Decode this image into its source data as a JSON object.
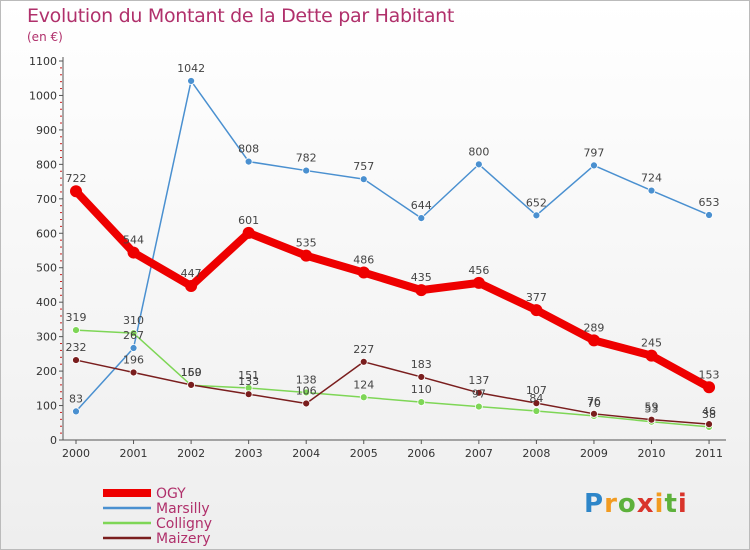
{
  "title": "Evolution du Montant de la Dette par Habitant",
  "unit_label": "(en €)",
  "logo_text": "Proxiti",
  "chart_data": {
    "type": "line",
    "title": "Evolution du Montant de la Dette par Habitant",
    "ylabel": "(en €)",
    "x": [
      "2000",
      "2001",
      "2002",
      "2003",
      "2004",
      "2005",
      "2006",
      "2007",
      "2008",
      "2009",
      "2010",
      "2011"
    ],
    "ylim": [
      0,
      1100
    ],
    "yticks": [
      0,
      100,
      200,
      300,
      400,
      500,
      600,
      700,
      800,
      900,
      1000,
      1100
    ],
    "grid": false,
    "legend_position": "bottom-left",
    "series": [
      {
        "name": "OGY",
        "color": "#ee0000",
        "values": [
          722,
          544,
          447,
          601,
          535,
          486,
          435,
          456,
          377,
          289,
          245,
          153
        ]
      },
      {
        "name": "Marsilly",
        "color": "#4a90d0",
        "values": [
          83,
          267,
          1042,
          808,
          782,
          757,
          644,
          800,
          652,
          797,
          724,
          653
        ]
      },
      {
        "name": "Colligny",
        "color": "#7ed656",
        "values": [
          319,
          310,
          159,
          151,
          138,
          124,
          110,
          97,
          84,
          70,
          53,
          38
        ]
      },
      {
        "name": "Maizery",
        "color": "#7a1e1e",
        "values": [
          232,
          196,
          160,
          133,
          106,
          227,
          183,
          137,
          107,
          76,
          59,
          46
        ]
      }
    ],
    "data_labels": [
      {
        "series": "OGY",
        "values": [
          "722",
          "544",
          "447",
          "601",
          "535",
          "486",
          "435",
          "456",
          "377",
          "289",
          "245",
          "153"
        ]
      },
      {
        "series": "Marsilly",
        "values": [
          "83",
          "267",
          "1042",
          "808",
          "782",
          "757",
          "644",
          "800",
          "652",
          "797",
          "724",
          "653"
        ]
      },
      {
        "series": "Colligny",
        "values": [
          "319",
          "310",
          "159",
          "151",
          "138",
          "124",
          "110",
          "97",
          "84",
          "70",
          "53",
          "38"
        ]
      },
      {
        "series": "Maizery",
        "values": [
          "232",
          "196",
          "160",
          "133",
          "106",
          "227",
          "183",
          "137",
          "107",
          "76",
          "59",
          "46"
        ]
      }
    ]
  }
}
